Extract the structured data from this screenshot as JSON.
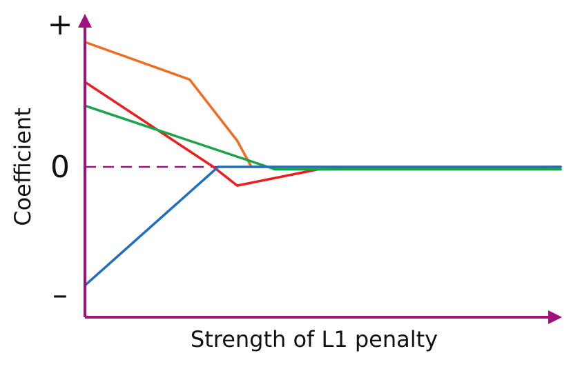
{
  "chart_data": {
    "type": "line",
    "xlabel": "Strength of L1 penalty",
    "ylabel": "Coefficient",
    "ytick_labels": [
      "+",
      "0",
      "–"
    ],
    "ytick_values": [
      1,
      0,
      -1
    ],
    "xlim": [
      0,
      1
    ],
    "ylim": [
      -1.2,
      1.2
    ],
    "axis_color": "#a0117e",
    "zero_line_color": "#a0117e",
    "series": [
      {
        "color": "#f26b1f",
        "points": [
          [
            0,
            1.0
          ],
          [
            0.22,
            0.7
          ],
          [
            0.32,
            0.21
          ],
          [
            0.35,
            0
          ],
          [
            1,
            0
          ]
        ]
      },
      {
        "color": "#ee1c1c",
        "points": [
          [
            0,
            0.68
          ],
          [
            0.27,
            0
          ],
          [
            0.32,
            -0.15
          ],
          [
            0.49,
            -0.02
          ],
          [
            1,
            0
          ]
        ]
      },
      {
        "color": "#19a34a",
        "points": [
          [
            0,
            0.49
          ],
          [
            0.4,
            -0.02
          ],
          [
            1,
            -0.02
          ]
        ]
      },
      {
        "color": "#1e6fbf",
        "points": [
          [
            0,
            -0.95
          ],
          [
            0.28,
            0
          ],
          [
            1,
            0
          ]
        ]
      }
    ]
  }
}
